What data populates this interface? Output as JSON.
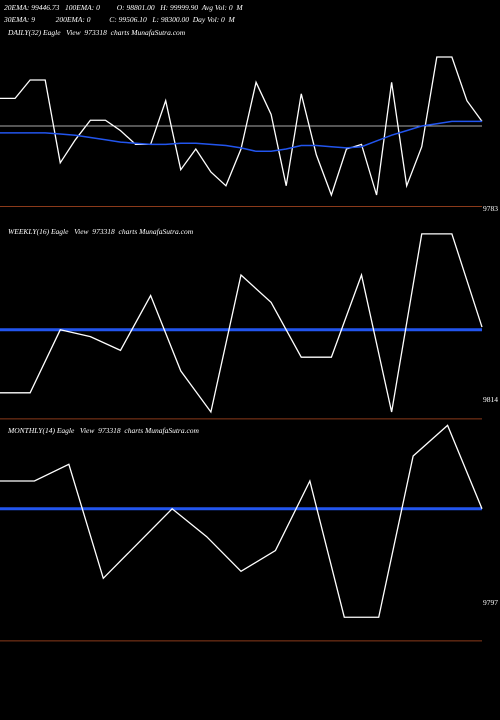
{
  "header": {
    "line1": "20EMA: 99446.73   100EMA: 0         O: 98801.00   H: 99999.90  Avg Vol: 0  M",
    "line2": "30EMA: 9           200EMA: 0          C: 99506.10   L: 98300.00  Day Vol: 0  M"
  },
  "chart_data": [
    {
      "type": "line",
      "label": "DAILY(32) Eagle   View  973318  charts MunafaSutra.com",
      "axis_label": "9783",
      "ylim": [
        0,
        100
      ],
      "x": [
        0,
        1,
        2,
        3,
        4,
        5,
        6,
        7,
        8,
        9,
        10,
        11,
        12,
        13,
        14,
        15,
        16,
        17,
        18,
        19,
        20,
        21,
        22,
        23,
        24,
        25,
        26,
        27,
        28,
        29,
        30,
        31,
        32
      ],
      "series": [
        {
          "values": [
            84,
            84,
            100,
            100,
            28,
            48,
            65,
            65,
            56,
            44,
            44,
            82,
            22,
            40,
            20,
            8,
            40,
            98,
            70,
            8,
            88,
            35,
            0,
            40,
            44,
            0,
            98,
            8,
            42,
            120,
            120,
            82,
            64
          ]
        },
        {
          "values": [
            54,
            54,
            54,
            54,
            53,
            52,
            50,
            48,
            46,
            45,
            44,
            44,
            45,
            45,
            44,
            43,
            41,
            38,
            38,
            40,
            43,
            43,
            42,
            41,
            42,
            47,
            52,
            56,
            60,
            62,
            64,
            64,
            64
          ]
        }
      ],
      "reference_lines": [
        60,
        -10
      ]
    },
    {
      "type": "line",
      "label": "WEEKLY(16) Eagle   View  973318  charts MunafaSutra.com",
      "axis_label": "9814",
      "ylim": [
        0,
        100
      ],
      "x": [
        0,
        1,
        2,
        3,
        4,
        5,
        6,
        7,
        8,
        9,
        10,
        11,
        12,
        13,
        14,
        15,
        16
      ],
      "series": [
        {
          "values": [
            14,
            14,
            60,
            55,
            45,
            85,
            30,
            0,
            100,
            80,
            40,
            40,
            100,
            0,
            130,
            130,
            62
          ]
        }
      ],
      "reference_lines": [
        60,
        -5
      ]
    },
    {
      "type": "line",
      "label": "MONTHLY(14) Eagle   View  973318  charts MunafaSutra.com",
      "axis_label": "9797",
      "ylim": [
        0,
        100
      ],
      "x": [
        0,
        1,
        2,
        3,
        4,
        5,
        6,
        7,
        8,
        9,
        10,
        11,
        12,
        13,
        14
      ],
      "series": [
        {
          "values": [
            100,
            100,
            112,
            30,
            55,
            80,
            60,
            35,
            50,
            100,
            2,
            2,
            118,
            140,
            80
          ]
        }
      ],
      "reference_lines": [
        80,
        -15
      ]
    }
  ],
  "colors": {
    "price_line": "#ffffff",
    "ema_line": "#2255ee",
    "level_line": "#aaaaaa",
    "support_line": "#8b3a1a"
  }
}
